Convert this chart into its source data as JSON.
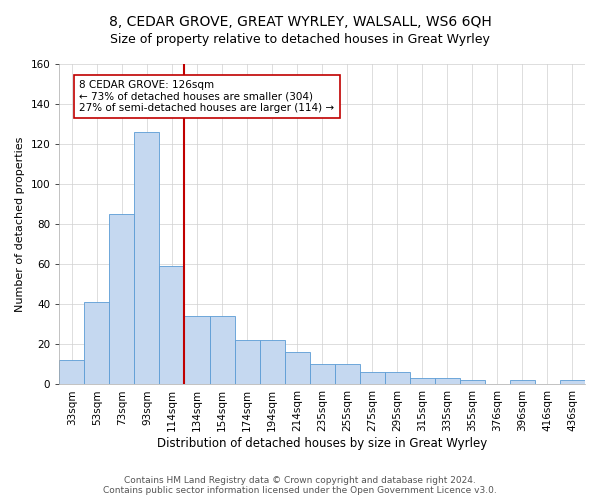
{
  "title1": "8, CEDAR GROVE, GREAT WYRLEY, WALSALL, WS6 6QH",
  "title2": "Size of property relative to detached houses in Great Wyrley",
  "xlabel": "Distribution of detached houses by size in Great Wyrley",
  "ylabel": "Number of detached properties",
  "bins": [
    "33sqm",
    "53sqm",
    "73sqm",
    "93sqm",
    "114sqm",
    "134sqm",
    "154sqm",
    "174sqm",
    "194sqm",
    "214sqm",
    "235sqm",
    "255sqm",
    "275sqm",
    "295sqm",
    "315sqm",
    "335sqm",
    "355sqm",
    "376sqm",
    "396sqm",
    "416sqm",
    "436sqm"
  ],
  "bar_values": [
    12,
    41,
    85,
    126,
    59,
    34,
    34,
    22,
    22,
    16,
    10,
    10,
    6,
    6,
    3,
    3,
    2,
    0,
    2,
    0,
    2
  ],
  "bar_color": "#c5d8f0",
  "bar_edge_color": "#5b9bd5",
  "highlight_line_color": "#c00000",
  "highlight_bin_index": 4,
  "annotation_text": "8 CEDAR GROVE: 126sqm\n← 73% of detached houses are smaller (304)\n27% of semi-detached houses are larger (114) →",
  "annotation_box_color": "#ffffff",
  "annotation_box_edge": "#c00000",
  "ylim": [
    0,
    160
  ],
  "yticks": [
    0,
    20,
    40,
    60,
    80,
    100,
    120,
    140,
    160
  ],
  "footnote": "Contains HM Land Registry data © Crown copyright and database right 2024.\nContains public sector information licensed under the Open Government Licence v3.0.",
  "title1_fontsize": 10,
  "title2_fontsize": 9,
  "xlabel_fontsize": 8.5,
  "ylabel_fontsize": 8,
  "tick_fontsize": 7.5,
  "annotation_fontsize": 7.5,
  "footnote_fontsize": 6.5
}
